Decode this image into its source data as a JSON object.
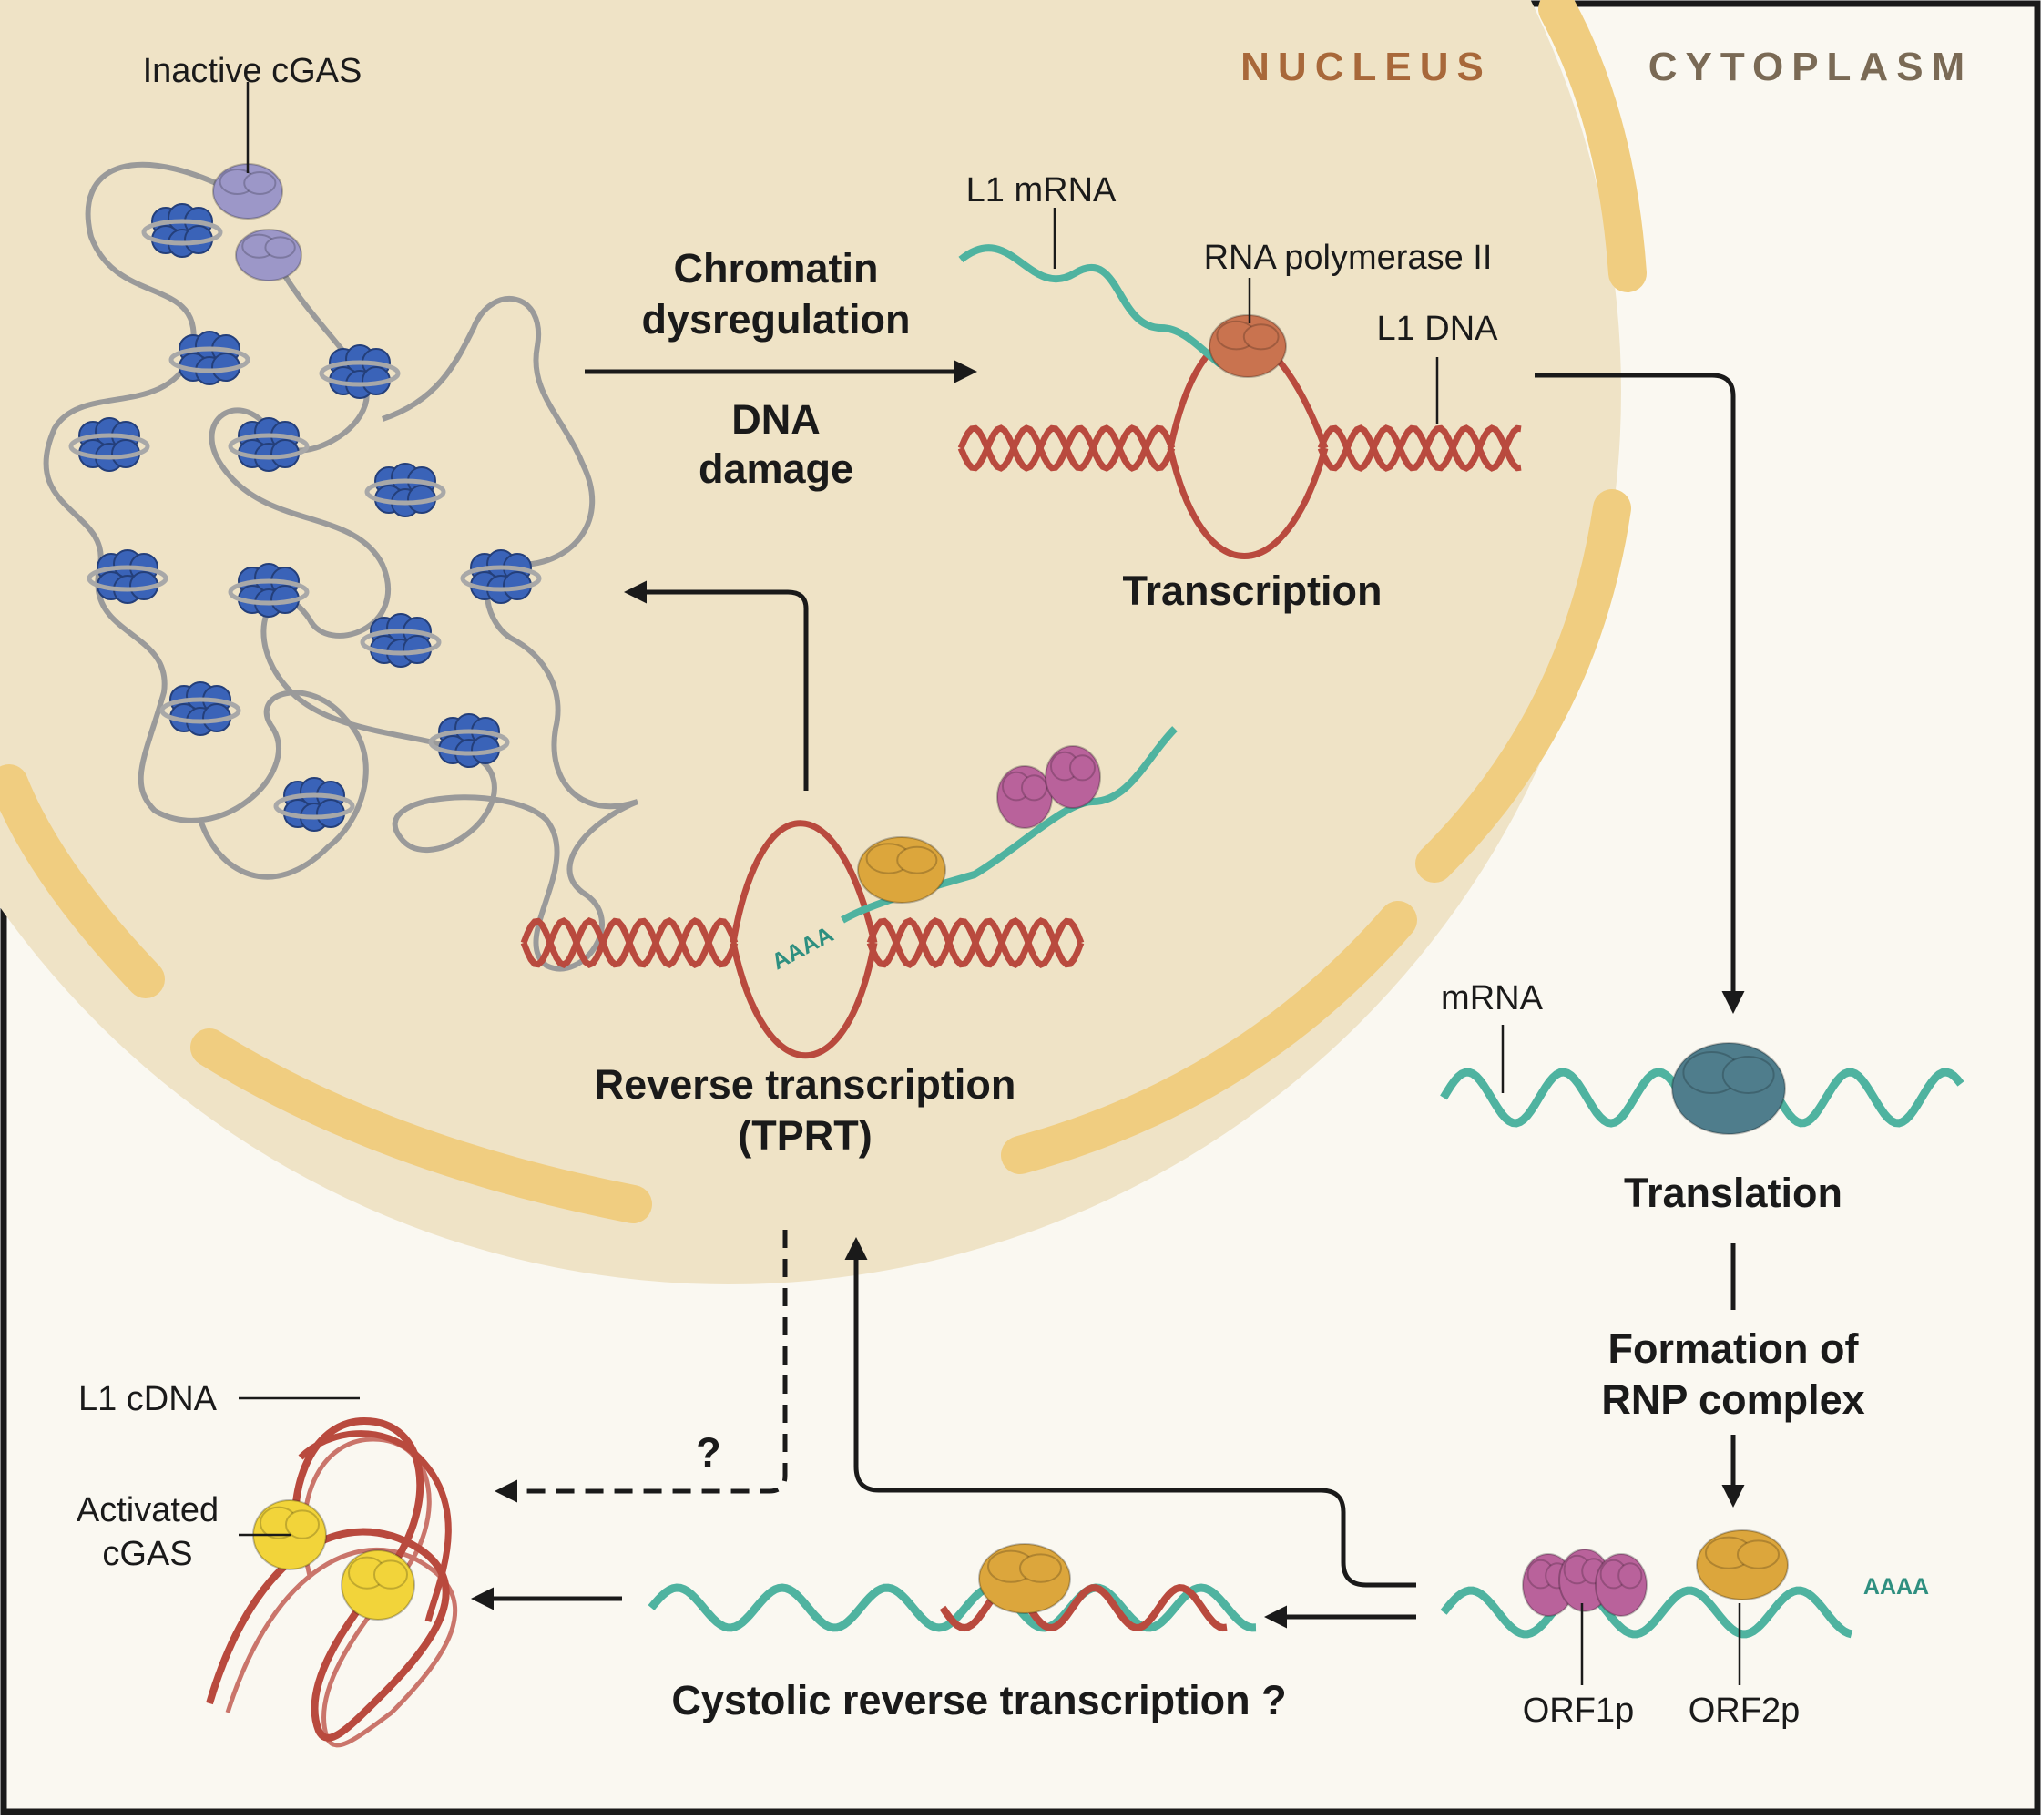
{
  "regions": {
    "nucleus": "NUCLEUS",
    "cytoplasm": "CYTOPLASM"
  },
  "labels": {
    "inactive_cgas": "Inactive cGAS",
    "l1_mrna": "L1 mRNA",
    "rna_pol2": "RNA polymerase II",
    "l1_dna": "L1 DNA",
    "mrna": "mRNA",
    "l1_cdna": "L1 cDNA",
    "activated_cgas_1": "Activated",
    "activated_cgas_2": "cGAS",
    "orf1p": "ORF1p",
    "orf2p": "ORF2p",
    "polya_nucleus": "AAAA",
    "polya_cytoplasm": "AAAA",
    "question_mark": "?"
  },
  "steps": {
    "chromatin_1": "Chromatin",
    "chromatin_2": "dysregulation",
    "dna_damage_1": "DNA",
    "dna_damage_2": "damage",
    "transcription": "Transcription",
    "reverse_transcription_1": "Reverse transcription",
    "reverse_transcription_2": "(TPRT)",
    "translation": "Translation",
    "rnp_1": "Formation of",
    "rnp_2": "RNP complex",
    "cytosolic_rt": "Cystolic reverse transcription ?"
  },
  "colors": {
    "nucleus_fill": "#efe3c6",
    "envelope": "#f0cd80",
    "cytoplasm_bg": "#faf8f1",
    "dna_red": "#b94a3e",
    "rna_teal": "#4fb3a0",
    "histone_blue": "#3a63b8",
    "cgas_inactive": "#9c97c8",
    "cgas_active": "#f2d43a",
    "orf2p_gold": "#dca63c",
    "orf1p_pink": "#b9629b",
    "ribosome": "#4f7d8c",
    "rna_pol": "#c9734f",
    "nucleus_text": "#a8683a",
    "cytoplasm_text": "#7a6a55"
  }
}
